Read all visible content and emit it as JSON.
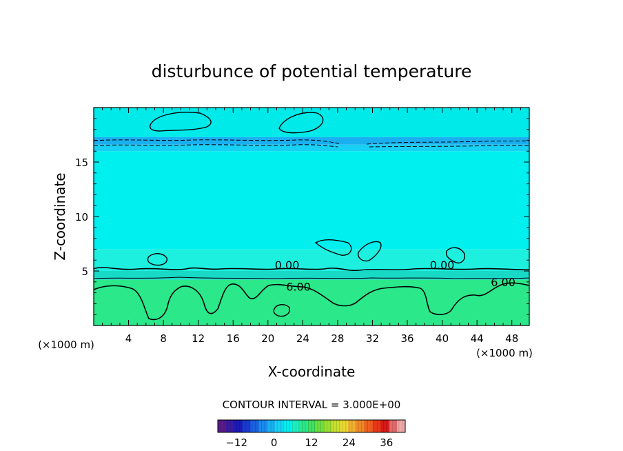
{
  "chart_data": {
    "type": "heatmap",
    "title": "disturbunce of potential temperature",
    "xlabel": "X-coordinate",
    "ylabel": "Z-coordinate",
    "x_unit_left": "(×1000 m)",
    "x_unit_right": "(×1000 m)",
    "xlim": [
      0,
      50
    ],
    "ylim": [
      0,
      20
    ],
    "x_ticks": [
      4,
      8,
      12,
      16,
      20,
      24,
      28,
      32,
      36,
      40,
      44,
      48
    ],
    "y_ticks": [
      5,
      10,
      15
    ],
    "contour_interval_text": "CONTOUR INTERVAL = 3.000E+00",
    "contour_labels": [
      {
        "text": "0.00",
        "x": 22.2,
        "z": 5.2
      },
      {
        "text": "0.00",
        "x": 40.0,
        "z": 5.2
      },
      {
        "text": "6.00",
        "x": 23.5,
        "z": 3.2
      },
      {
        "text": "6.00",
        "x": 47.0,
        "z": 3.6
      }
    ],
    "layers": [
      {
        "z0": 0.0,
        "z1": 4.2,
        "value": 7.5,
        "color": "#2be88a"
      },
      {
        "z0": 4.2,
        "z1": 5.0,
        "value": 4.5,
        "color": "#18d9c6"
      },
      {
        "z0": 5.0,
        "z1": 7.0,
        "value": 1.5,
        "color": "#1ef0e0"
      },
      {
        "z0": 7.0,
        "z1": 16.0,
        "value": 0.0,
        "color": "#00f0f0"
      },
      {
        "z0": 16.0,
        "z1": 16.6,
        "value": -1.5,
        "color": "#18d0f4"
      },
      {
        "z0": 16.6,
        "z1": 17.3,
        "value": -4.5,
        "color": "#1ab0f0"
      },
      {
        "z0": 17.3,
        "z1": 20.0,
        "value": 0.0,
        "color": "#00eaea"
      }
    ],
    "colorbar": {
      "min": -18,
      "max": 42,
      "ticks": [
        -12,
        0,
        12,
        24,
        36
      ],
      "tick_labels": [
        "−12",
        "0",
        "12",
        "24",
        "36"
      ],
      "colors": [
        "#5a1a8a",
        "#3a1aa0",
        "#1a1ab8",
        "#1a3acc",
        "#1a60e0",
        "#1a88f0",
        "#1ab0f0",
        "#18d0f4",
        "#00f0f0",
        "#1ef0c0",
        "#2be88a",
        "#40e060",
        "#6ae040",
        "#9ae030",
        "#c8e030",
        "#e8d830",
        "#f0b030",
        "#f08828",
        "#f06020",
        "#e83818",
        "#d81818",
        "#e06a6a",
        "#f0a8a8"
      ]
    }
  }
}
